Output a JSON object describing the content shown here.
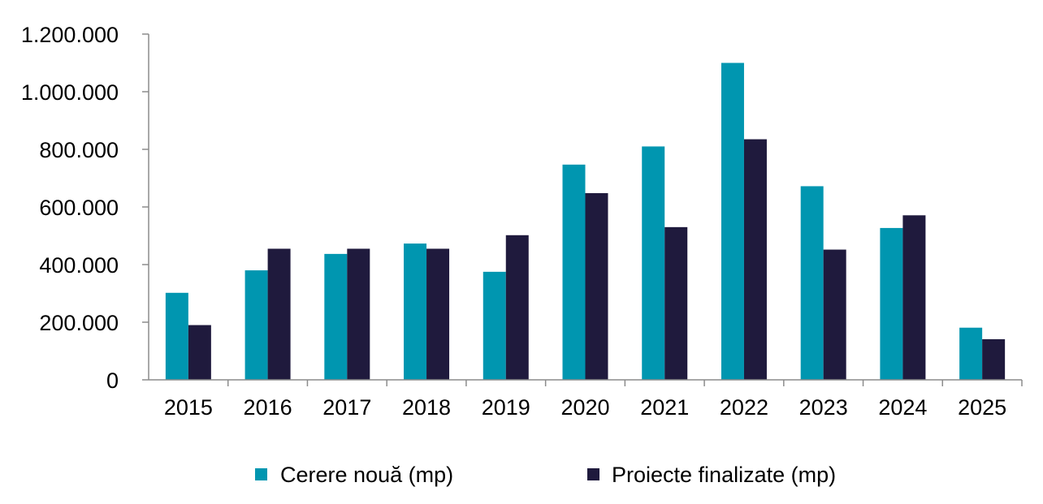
{
  "chart_data": {
    "type": "bar",
    "categories": [
      "2015",
      "2016",
      "2017",
      "2018",
      "2019",
      "2020",
      "2021",
      "2022",
      "2023",
      "2024",
      "2025"
    ],
    "series": [
      {
        "name": "Cerere nouă (mp)",
        "color": "#0096b0",
        "values": [
          302000,
          380000,
          437000,
          473000,
          375000,
          747000,
          810000,
          1100000,
          672000,
          527000,
          181000
        ]
      },
      {
        "name": "Proiecte finalizate (mp)",
        "color": "#1f1a3d",
        "values": [
          190000,
          455000,
          455000,
          455000,
          502000,
          648000,
          530000,
          835000,
          452000,
          571000,
          141000
        ]
      }
    ],
    "y_ticks": [
      "0",
      "200.000",
      "400.000",
      "600.000",
      "800.000",
      "1.000.000",
      "1.200.000"
    ],
    "ylim": [
      0,
      1200000
    ],
    "title": "",
    "xlabel": "",
    "ylabel": "",
    "grid": false,
    "legend_position": "bottom"
  }
}
